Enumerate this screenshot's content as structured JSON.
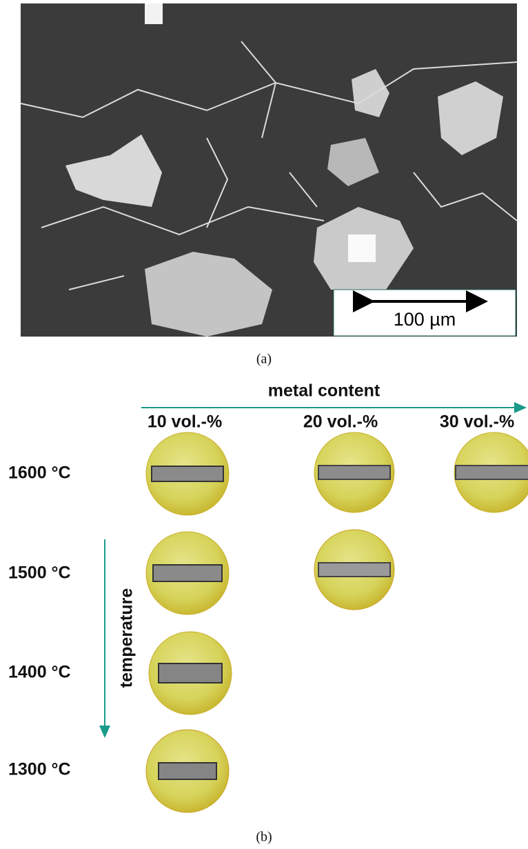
{
  "panel_a": {
    "scale_bar": "100 µm",
    "caption": "(a)"
  },
  "panel_b": {
    "axis_x_label": "metal content",
    "axis_y_label": "temperature",
    "columns": [
      "10 vol.-%",
      "20 vol.-%",
      "30 vol.-%"
    ],
    "rows": [
      "1600 °C",
      "1500 °C",
      "1400 °C",
      "1300 °C"
    ],
    "caption": "(b)"
  }
}
